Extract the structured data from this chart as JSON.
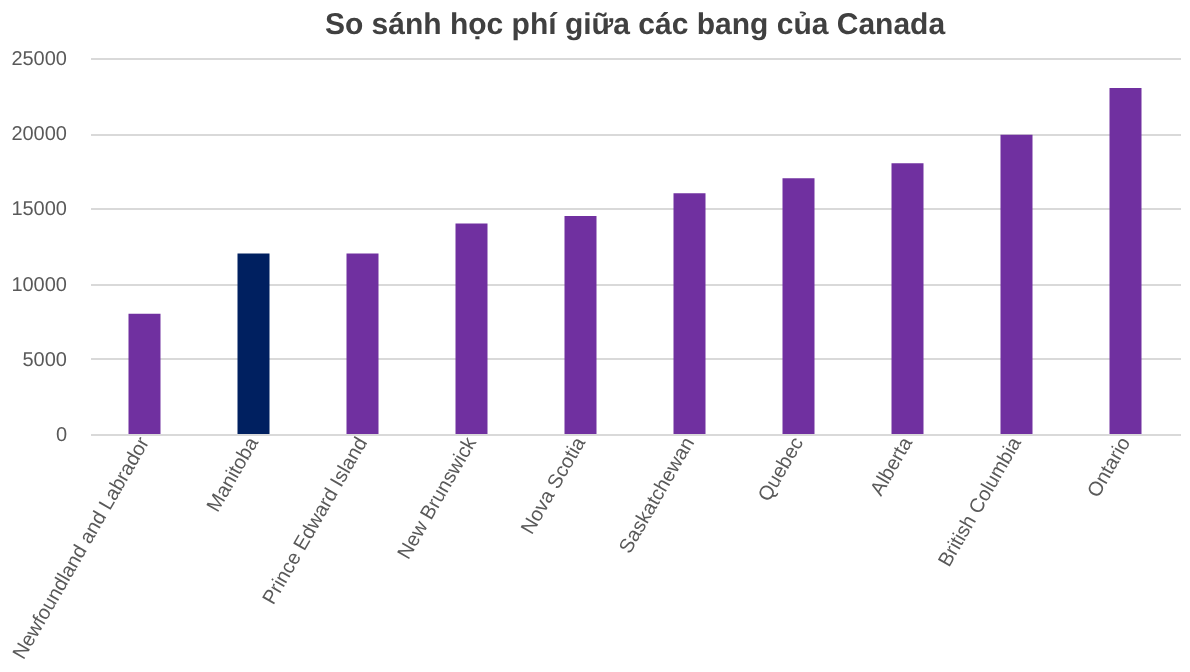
{
  "chart_data": {
    "type": "bar",
    "title": "So sánh học phí giữa các bang của Canada",
    "categories": [
      "Newfoundland and Labrador",
      "Manitoba",
      "Prince Edward Island",
      "New Brunswick",
      "Nova Scotia",
      "Saskatchewan",
      "Quebec",
      "Alberta",
      "British Columbia",
      "Ontario"
    ],
    "values": [
      8000,
      12000,
      12000,
      14000,
      14500,
      16000,
      17000,
      18000,
      19900,
      23000
    ],
    "colors": [
      "#7030a0",
      "#002060",
      "#7030a0",
      "#7030a0",
      "#7030a0",
      "#7030a0",
      "#7030a0",
      "#7030a0",
      "#7030a0",
      "#7030a0"
    ],
    "ylim": [
      0,
      25000
    ],
    "yticks": [
      0,
      5000,
      10000,
      15000,
      20000,
      25000
    ],
    "grid": "y"
  }
}
